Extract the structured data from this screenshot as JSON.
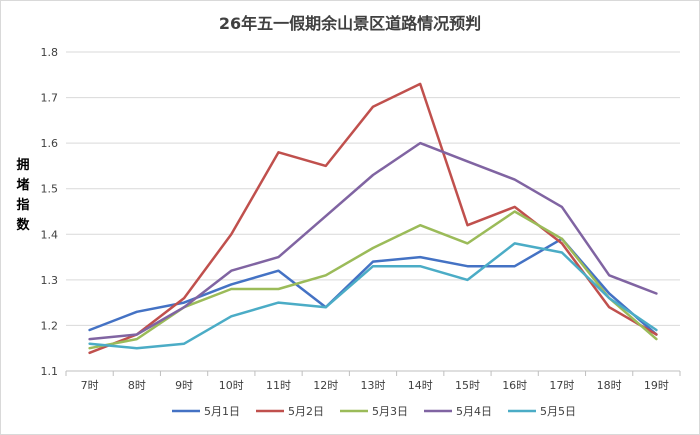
{
  "chart_data": {
    "type": "line",
    "title": "26年五一假期余山景区道路情况预判",
    "ylabel_chars": [
      "拥",
      "堵",
      "指",
      "数"
    ],
    "xlabel": "",
    "categories": [
      "7时",
      "8时",
      "9时",
      "10时",
      "11时",
      "12时",
      "13时",
      "14时",
      "15时",
      "16时",
      "17时",
      "18时",
      "19时"
    ],
    "ylim": [
      1.1,
      1.8
    ],
    "yticks": [
      "1.1",
      "1.2",
      "1.3",
      "1.4",
      "1.5",
      "1.6",
      "1.7",
      "1.8"
    ],
    "grid": true,
    "legend_position": "bottom",
    "series": [
      {
        "name": "5月1日",
        "color": "#4472C4",
        "values": [
          1.19,
          1.23,
          1.25,
          1.29,
          1.32,
          1.24,
          1.34,
          1.35,
          1.33,
          1.33,
          1.39,
          1.27,
          1.18
        ]
      },
      {
        "name": "5月2日",
        "color": "#C0504D",
        "values": [
          1.14,
          1.18,
          1.26,
          1.4,
          1.58,
          1.55,
          1.68,
          1.73,
          1.42,
          1.46,
          1.38,
          1.24,
          1.18
        ]
      },
      {
        "name": "5月3日",
        "color": "#9BBB59",
        "values": [
          1.15,
          1.17,
          1.24,
          1.28,
          1.28,
          1.31,
          1.37,
          1.42,
          1.38,
          1.45,
          1.39,
          1.26,
          1.17
        ]
      },
      {
        "name": "5月4日",
        "color": "#8064A2",
        "values": [
          1.17,
          1.18,
          1.24,
          1.32,
          1.35,
          1.44,
          1.53,
          1.6,
          1.56,
          1.52,
          1.46,
          1.31,
          1.27
        ]
      },
      {
        "name": "5月5日",
        "color": "#4BACC6",
        "values": [
          1.16,
          1.15,
          1.16,
          1.22,
          1.25,
          1.24,
          1.33,
          1.33,
          1.3,
          1.38,
          1.36,
          1.26,
          1.19
        ]
      }
    ]
  }
}
